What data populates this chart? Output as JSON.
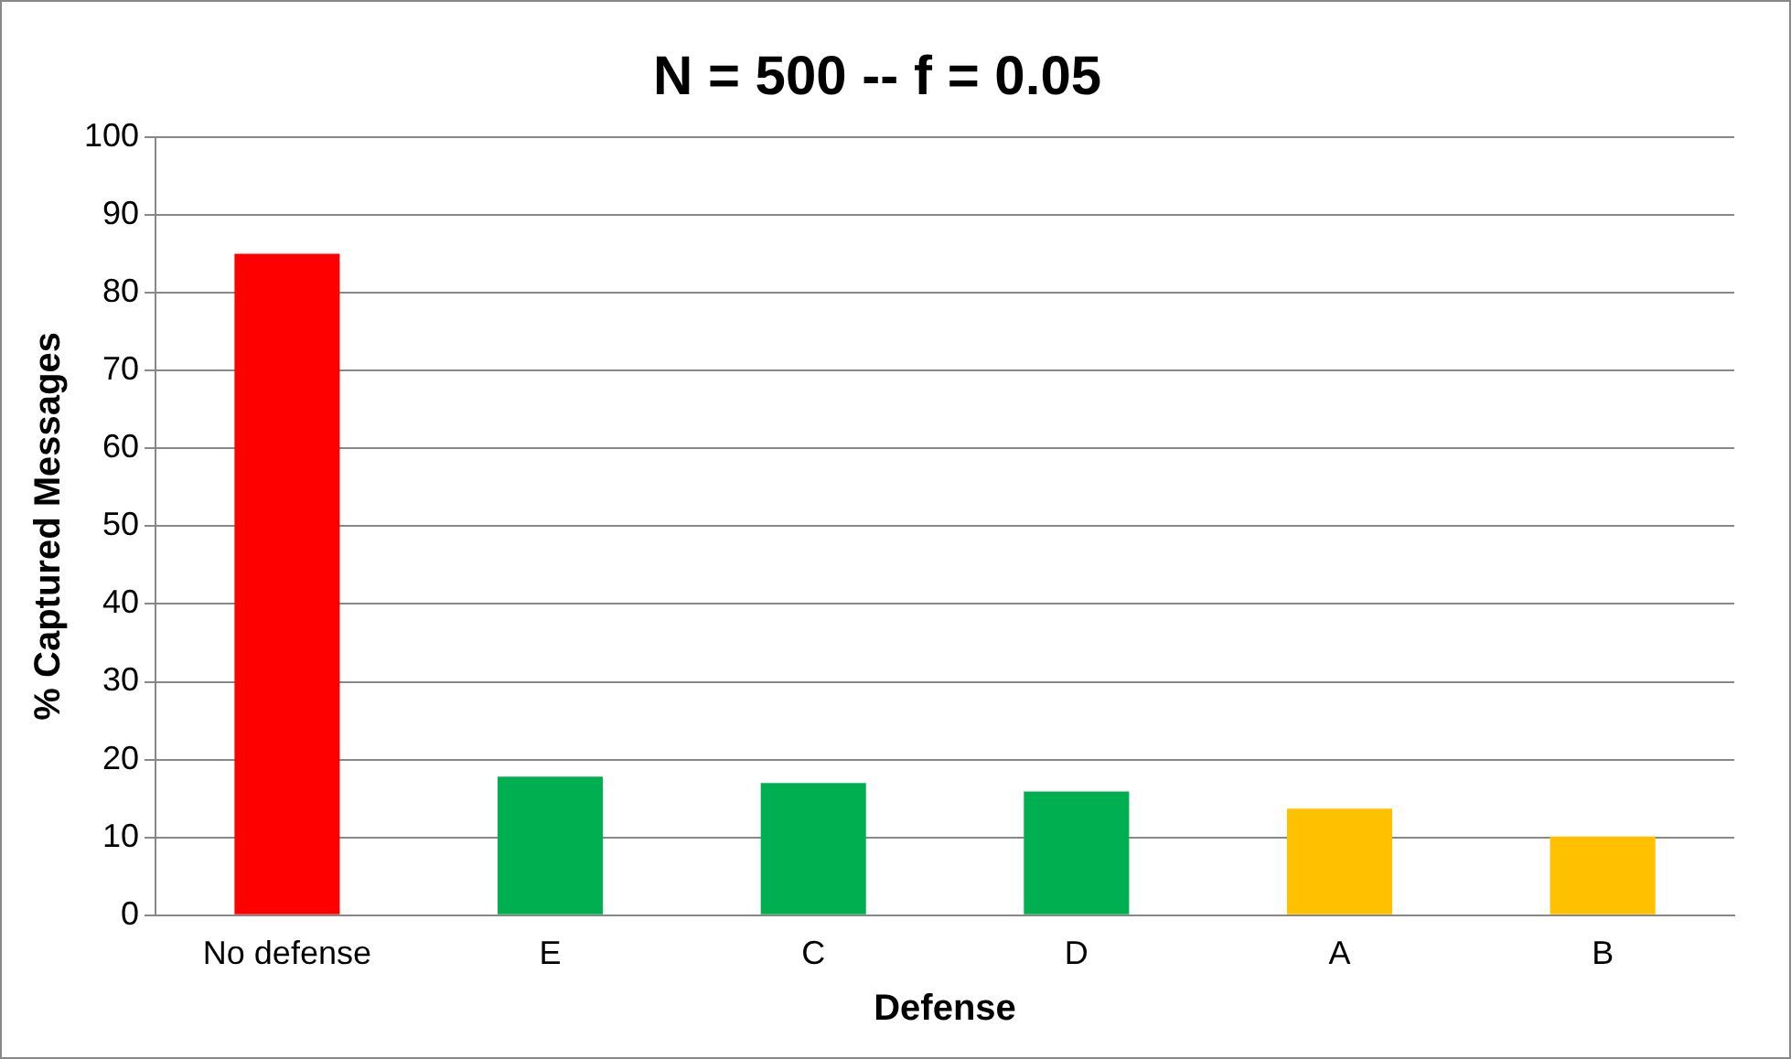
{
  "chart_data": {
    "type": "bar",
    "title": "N = 500 -- f = 0.05",
    "xlabel": "Defense",
    "ylabel": "% Captured Messages",
    "categories": [
      "No defense",
      "E",
      "C",
      "D",
      "A",
      "B"
    ],
    "values": [
      85,
      17.8,
      17,
      15.9,
      13.7,
      10.1
    ],
    "colors": [
      "#ff0000",
      "#00b050",
      "#00b050",
      "#00b050",
      "#ffc000",
      "#ffc000"
    ],
    "ylim": [
      0,
      100
    ],
    "yticks": [
      0,
      10,
      20,
      30,
      40,
      50,
      60,
      70,
      80,
      90,
      100
    ],
    "grid": "y",
    "legend": false
  }
}
